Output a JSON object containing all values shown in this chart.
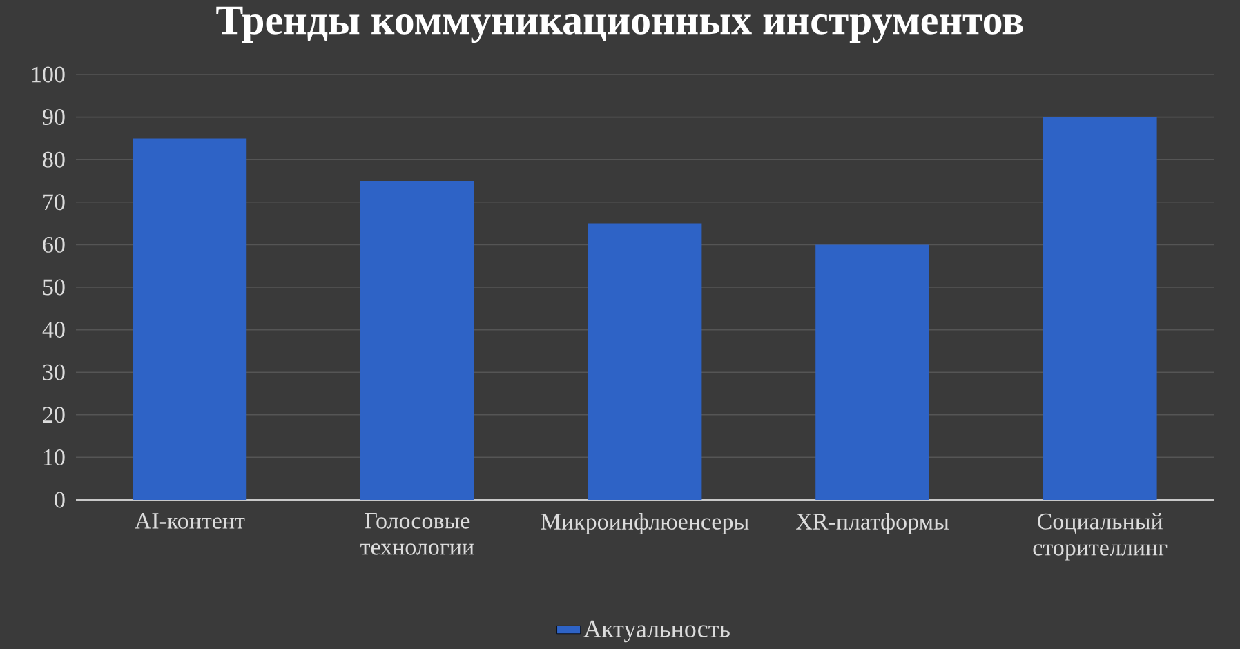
{
  "chart_data": {
    "type": "bar",
    "title": "Тренды коммуникационных инструментов",
    "categories": [
      "AI-контент",
      "Голосовые технологии",
      "Микроинфлюенсеры",
      "XR-платформы",
      "Социальный сторителлинг"
    ],
    "series": [
      {
        "name": "Актуальность",
        "color": "#2e63c6",
        "values": [
          85,
          75,
          65,
          60,
          90
        ]
      }
    ],
    "ylim": [
      0,
      100
    ],
    "yticks": [
      0,
      10,
      20,
      30,
      40,
      50,
      60,
      70,
      80,
      90,
      100
    ],
    "grid": "y",
    "legend": "bottom"
  }
}
